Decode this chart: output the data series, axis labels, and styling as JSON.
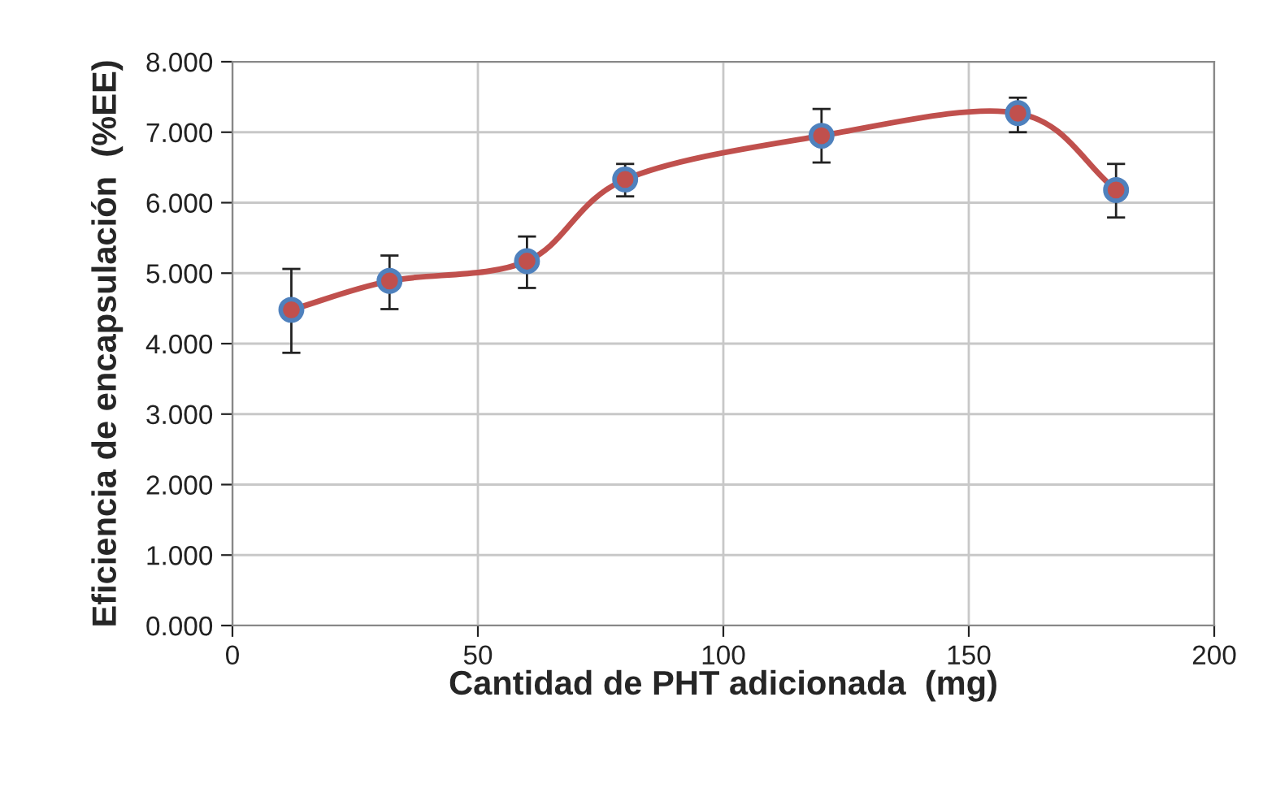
{
  "chart_data": {
    "type": "line",
    "xlabel": "Cantidad de PHT adicionada  (mg)",
    "ylabel": "Eficiencia de encapsulación  (%EE)",
    "x": [
      12,
      32,
      60,
      80,
      120,
      160,
      180
    ],
    "series": [
      {
        "color": "#c0504d",
        "values": [
          4.48,
          4.89,
          5.17,
          6.33,
          6.95,
          7.27,
          6.18
        ],
        "errors": [
          [
            3.87,
            5.06
          ],
          [
            4.49,
            5.25
          ],
          [
            4.79,
            5.52
          ],
          [
            6.09,
            6.55
          ],
          [
            6.57,
            7.33
          ],
          [
            7.0,
            7.49
          ],
          [
            5.79,
            6.55
          ]
        ]
      }
    ],
    "xlim": [
      0,
      200
    ],
    "xticks": [
      0,
      50,
      100,
      150,
      200
    ],
    "ylim": [
      0,
      8
    ],
    "yticks": [
      {
        "value": 0,
        "label": "0.000"
      },
      {
        "value": 1,
        "label": "1.000"
      },
      {
        "value": 2,
        "label": "2.000"
      },
      {
        "value": 3,
        "label": "3.000"
      },
      {
        "value": 4,
        "label": "4.000"
      },
      {
        "value": 5,
        "label": "5.000"
      },
      {
        "value": 6,
        "label": "6.000"
      },
      {
        "value": 7,
        "label": "7.000"
      },
      {
        "value": 8,
        "label": "8.000"
      }
    ],
    "grid": true,
    "marker": "circle",
    "line_style": "solid"
  }
}
